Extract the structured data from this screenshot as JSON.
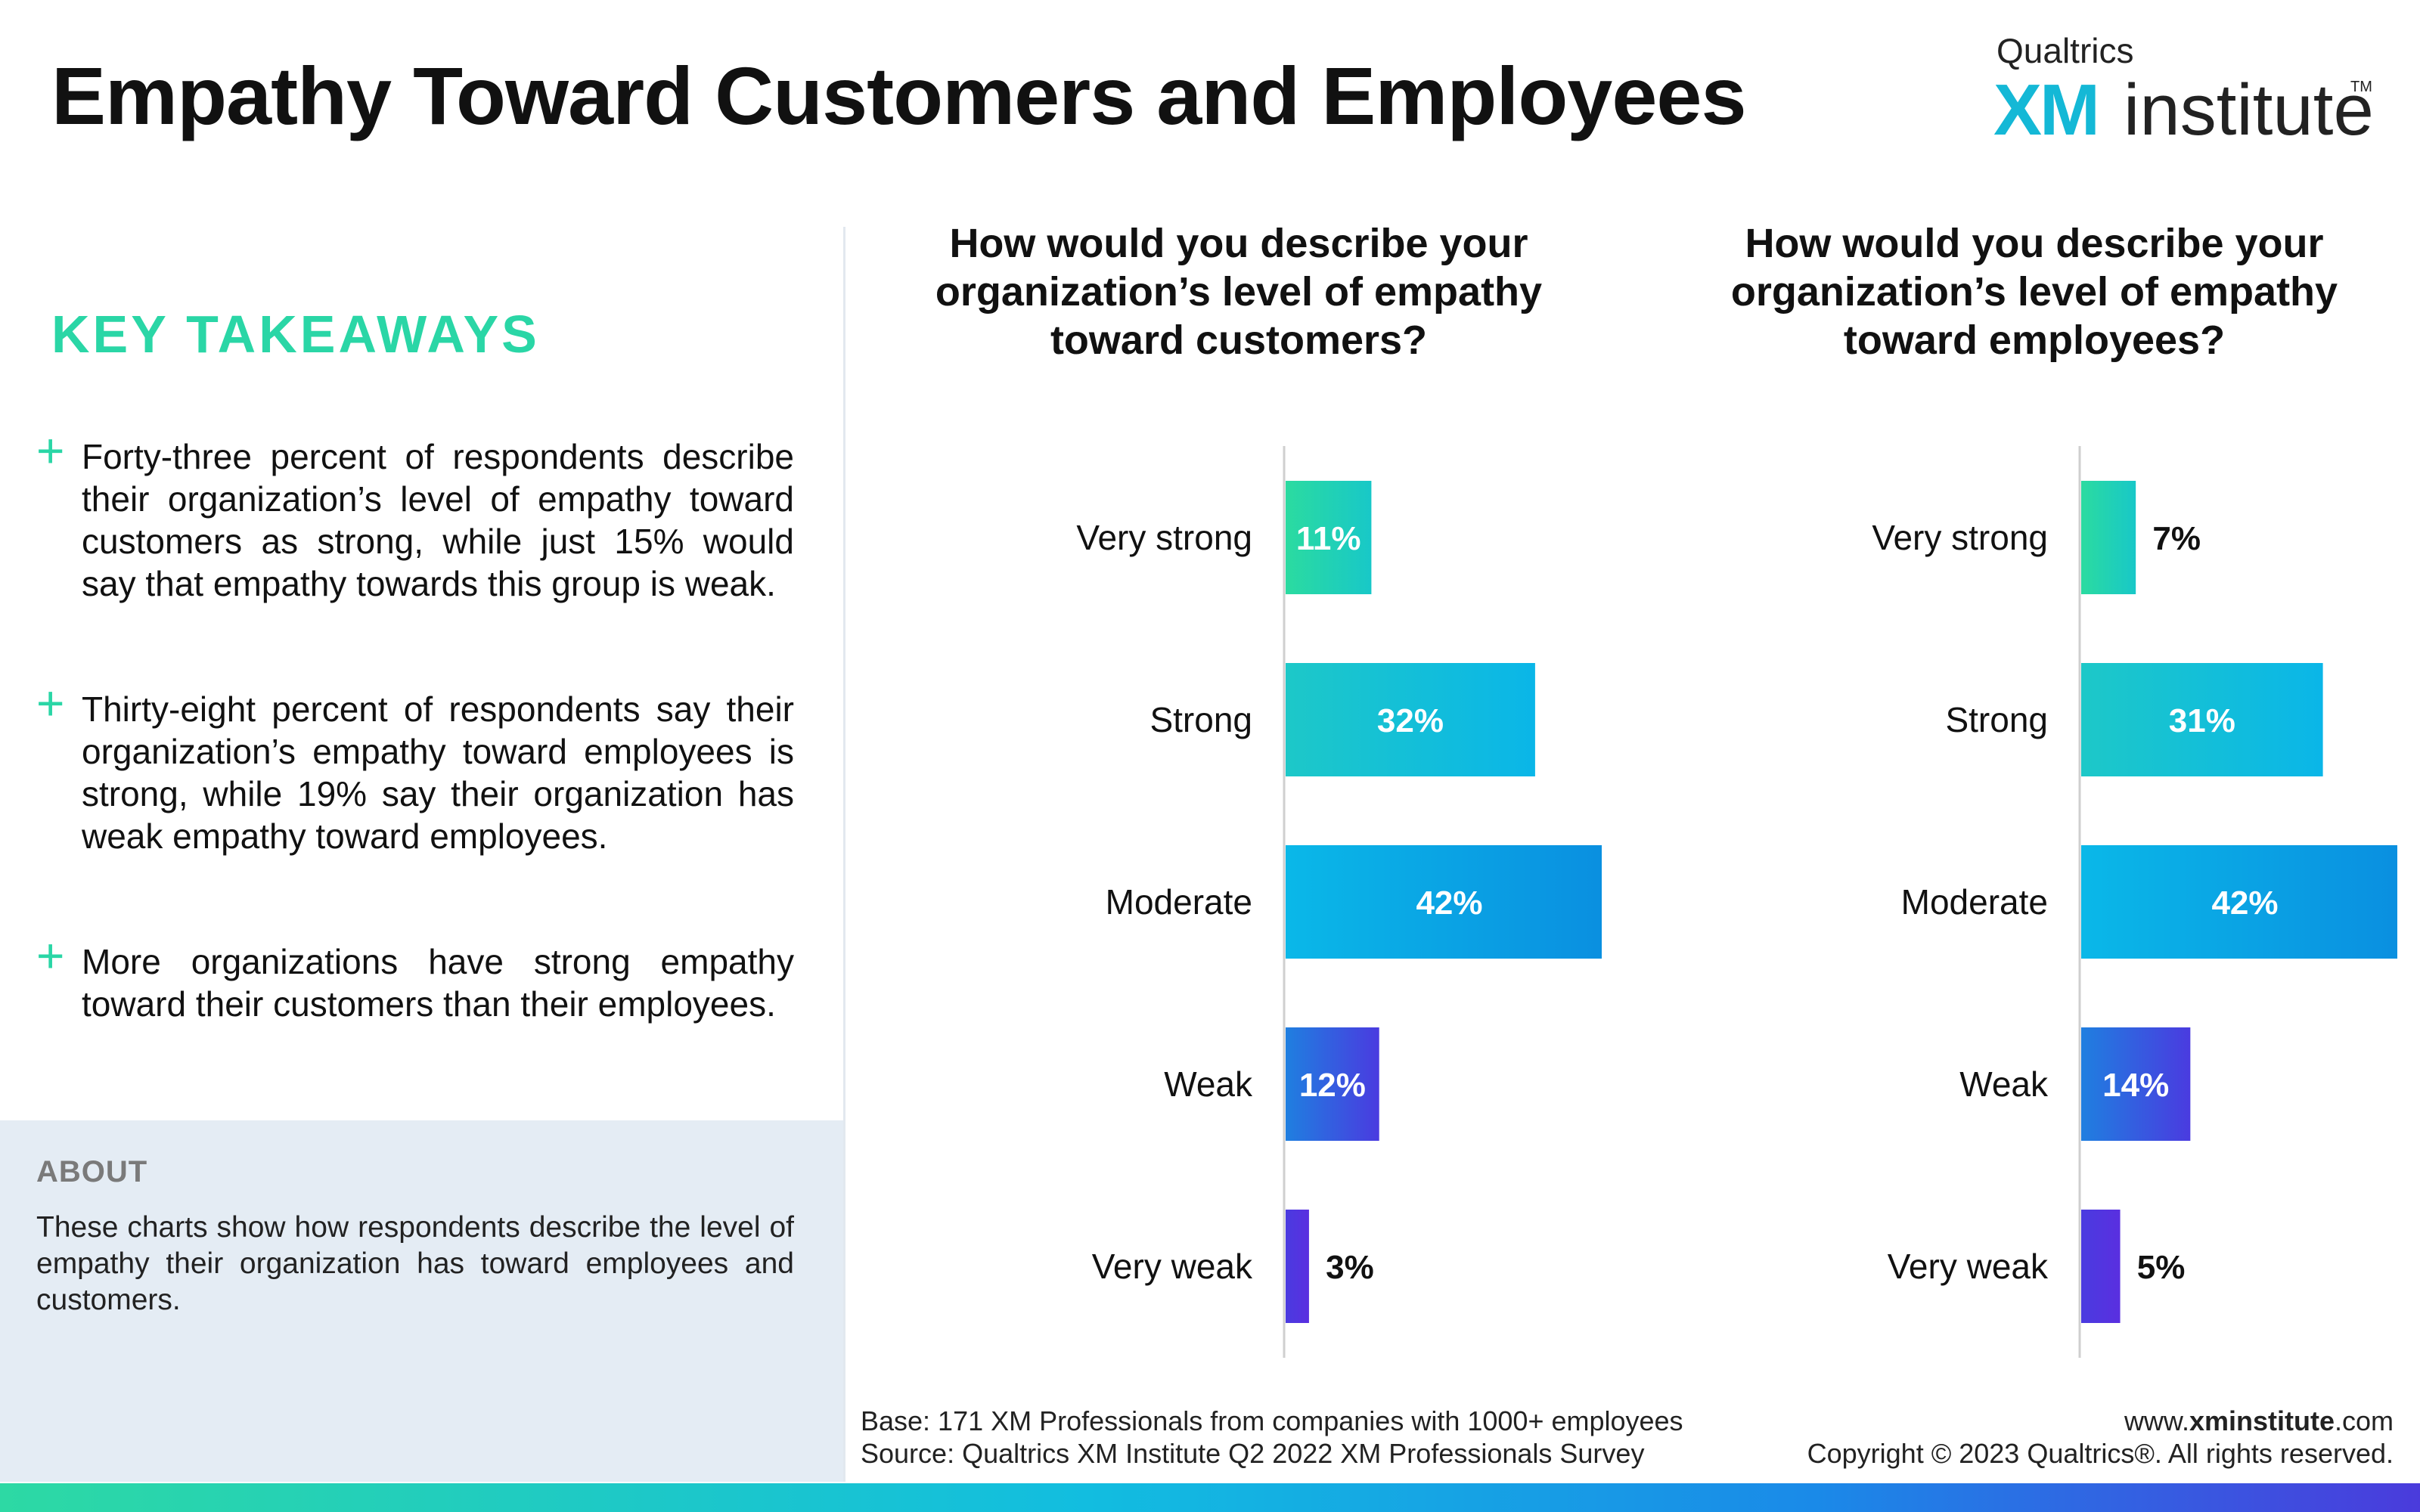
{
  "header": {
    "title": "Empathy Toward Customers and Employees",
    "logo": {
      "brand": "Qualtrics",
      "xm": "XM",
      "institute": "institute",
      "tm": "TM"
    }
  },
  "takeaways": {
    "title": "KEY TAKEAWAYS",
    "items": [
      "Forty-three percent of respondents describe their organization’s level of empathy toward customers as strong, while just 15% would say that empathy towards this group is weak.",
      "Thirty-eight percent of respondents say their organization’s empathy toward employees is strong, while 19% say their organization has weak empathy toward employees.",
      "More organizations have strong empathy toward their customers than their employees."
    ]
  },
  "about": {
    "title": "ABOUT",
    "text": "These charts show how respondents describe the level of empathy their organization has toward employees and customers."
  },
  "colors": {
    "accent_green": "#2ad6a6",
    "about_bg": "#e4ecf4",
    "bar_very_strong": [
      "#2bdba0",
      "#18c8c8"
    ],
    "bar_strong": [
      "#1dc8c8",
      "#0ab6e8"
    ],
    "bar_moderate": [
      "#0ab8e8",
      "#0a8ee0"
    ],
    "bar_weak": [
      "#1f7fe0",
      "#4a3be0"
    ],
    "bar_very_weak": [
      "#4a3be0",
      "#5a2fe0"
    ]
  },
  "chart_data": [
    {
      "type": "bar",
      "orientation": "horizontal",
      "title": "How would you describe your organization’s level of empathy toward customers?",
      "categories": [
        "Very strong",
        "Strong",
        "Moderate",
        "Weak",
        "Very weak"
      ],
      "values": [
        11,
        32,
        42,
        12,
        3
      ],
      "value_labels": [
        "11%",
        "32%",
        "42%",
        "12%",
        "3%"
      ],
      "xlim": [
        0,
        42
      ]
    },
    {
      "type": "bar",
      "orientation": "horizontal",
      "title": "How would you describe your organization’s level of empathy toward employees?",
      "categories": [
        "Very strong",
        "Strong",
        "Moderate",
        "Weak",
        "Very weak"
      ],
      "values": [
        7,
        31,
        42,
        14,
        5
      ],
      "value_labels": [
        "7%",
        "31%",
        "42%",
        "14%",
        "5%"
      ],
      "xlim": [
        0,
        42
      ]
    }
  ],
  "footer": {
    "base": "Base: 171 XM Professionals from companies with 1000+ employees",
    "source": "Source: Qualtrics XM Institute Q2 2022 XM Professionals Survey",
    "url_prefix": "www.",
    "url_bold": "xminstitute",
    "url_suffix": ".com",
    "copyright": "Copyright © 2023 Qualtrics®. All rights reserved."
  }
}
